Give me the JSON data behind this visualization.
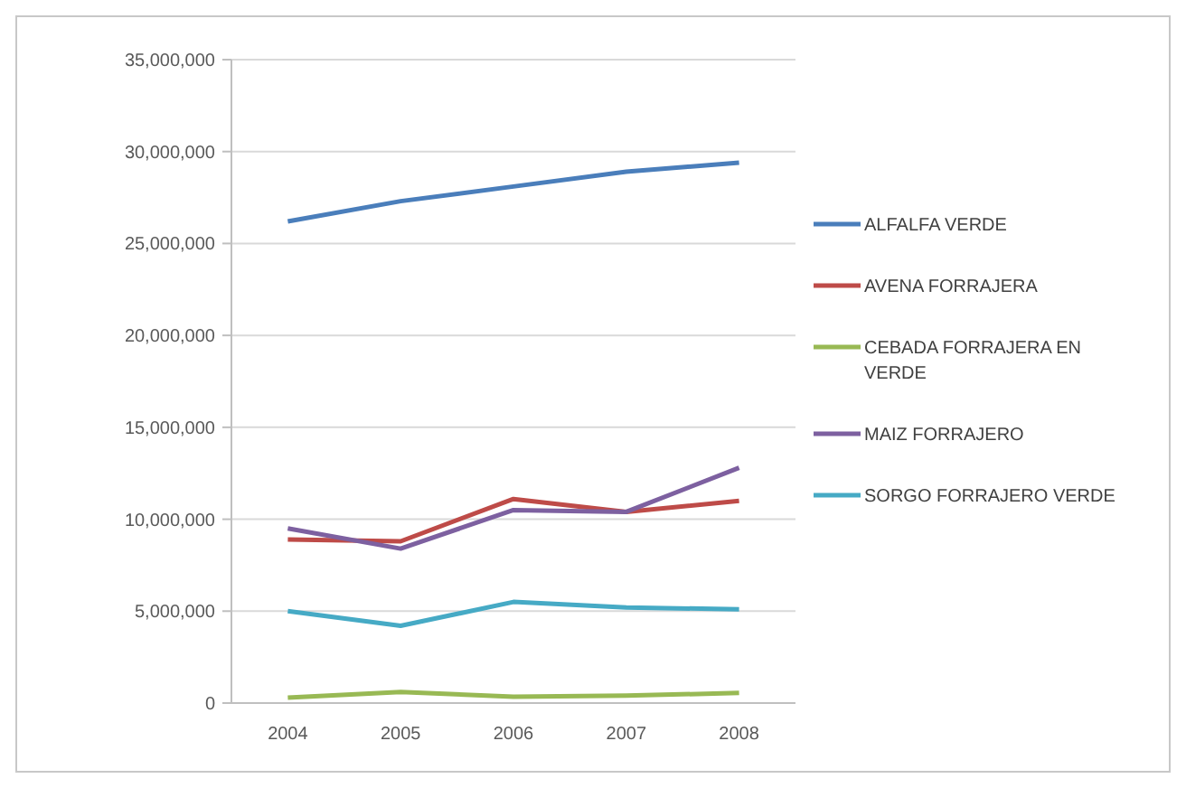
{
  "chart_data": {
    "type": "line",
    "categories": [
      "2004",
      "2005",
      "2006",
      "2007",
      "2008"
    ],
    "series": [
      {
        "name": "ALFALFA VERDE",
        "color": "#4a7ebb",
        "values": [
          26200000,
          27300000,
          28100000,
          28900000,
          29400000
        ]
      },
      {
        "name": "AVENA FORRAJERA",
        "color": "#be4b48",
        "values": [
          8900000,
          8800000,
          11100000,
          10400000,
          11000000
        ]
      },
      {
        "name": "CEBADA FORRAJERA EN VERDE",
        "color": "#98b954",
        "values": [
          300000,
          600000,
          350000,
          400000,
          550000
        ]
      },
      {
        "name": "MAIZ FORRAJERO",
        "color": "#7d60a0",
        "values": [
          9500000,
          8400000,
          10500000,
          10400000,
          12800000
        ]
      },
      {
        "name": "SORGO FORRAJERO VERDE",
        "color": "#46aac5",
        "values": [
          5000000,
          4200000,
          5500000,
          5200000,
          5100000
        ]
      }
    ],
    "ylim": [
      0,
      35000000
    ],
    "yticks": [
      {
        "value": 0,
        "label": "0"
      },
      {
        "value": 5000000,
        "label": "5,000,000"
      },
      {
        "value": 10000000,
        "label": "10,000,000"
      },
      {
        "value": 15000000,
        "label": "15,000,000"
      },
      {
        "value": 20000000,
        "label": "20,000,000"
      },
      {
        "value": 25000000,
        "label": "25,000,000"
      },
      {
        "value": 30000000,
        "label": "30,000,000"
      },
      {
        "value": 35000000,
        "label": "35,000,000"
      }
    ],
    "grid": "y",
    "legend": "right",
    "marker": "none",
    "line_style": "solid"
  }
}
